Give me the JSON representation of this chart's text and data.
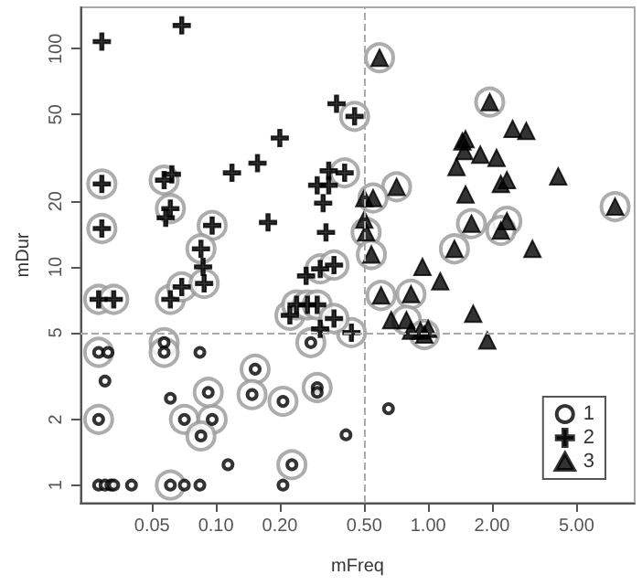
{
  "chart_data": {
    "type": "scatter",
    "xlabel": "mFreq",
    "ylabel": "mDur",
    "log": "xy",
    "grid": false,
    "legend": "bottom right",
    "xlim": [
      0.023,
      9.4
    ],
    "ylim": [
      0.83,
      155
    ],
    "xticks": [
      {
        "value": 0.05,
        "label": "0.05"
      },
      {
        "value": 0.1,
        "label": "0.10"
      },
      {
        "value": 0.2,
        "label": "0.20"
      },
      {
        "value": 0.5,
        "label": "0.50"
      },
      {
        "value": 1,
        "label": "1.00"
      },
      {
        "value": 2,
        "label": "2.00"
      },
      {
        "value": 5,
        "label": "5.00"
      }
    ],
    "yticks": [
      1,
      2,
      5,
      10,
      20,
      50,
      100
    ],
    "ref_lines": [
      {
        "axis": "x",
        "value": 0.5,
        "color": "#aaaaaa",
        "line_style": "dashed"
      },
      {
        "axis": "y",
        "value": 5,
        "color": "#aaaaaa",
        "line_style": "dashed"
      }
    ],
    "series": [
      {
        "name": "1",
        "color": "#000000",
        "marker": "circle",
        "x": [
          0.028,
          0.031,
          0.03,
          0.028,
          0.028,
          0.03,
          0.032,
          0.033,
          0.04,
          0.057,
          0.057,
          0.084,
          0.061,
          0.071,
          0.096,
          0.092,
          0.085,
          0.061,
          0.071,
          0.084,
          0.114,
          0.153,
          0.148,
          0.207,
          0.228,
          0.207,
          0.28,
          0.3,
          0.3,
          0.65,
          0.41
        ],
        "values": [
          4.06,
          4.06,
          3.0,
          2.0,
          1,
          1,
          1,
          1,
          1,
          4.5,
          4.06,
          4.06,
          2.5,
          2.0,
          2.0,
          2.66,
          1.68,
          1,
          1,
          1,
          1.24,
          3.4,
          2.6,
          2.42,
          1.24,
          1,
          4.5,
          2.8,
          2.66,
          2.24,
          1.7
        ]
      },
      {
        "name": "2",
        "color": "#000000",
        "marker": "cross",
        "x": [
          0.029,
          0.069,
          0.029,
          0.029,
          0.057,
          0.062,
          0.061,
          0.058,
          0.119,
          0.157,
          0.2,
          0.176,
          0.096,
          0.085,
          0.087,
          0.266,
          0.31,
          0.3,
          0.34,
          0.34,
          0.32,
          0.33,
          0.37,
          0.45,
          0.404,
          0.36,
          0.028,
          0.033,
          0.061,
          0.069,
          0.088,
          0.223,
          0.24,
          0.27,
          0.3,
          0.31,
          0.435,
          0.36
        ],
        "values": [
          108,
          128,
          24,
          15,
          25,
          26.6,
          18.5,
          16.8,
          27,
          29.9,
          39,
          16,
          15.5,
          12.1,
          10,
          9.1,
          9.8,
          23.7,
          23.7,
          27.6,
          19.6,
          14.4,
          56,
          49,
          27,
          10.2,
          7.1,
          7.1,
          7.1,
          8.1,
          8.4,
          6.0,
          6.7,
          6.7,
          6.7,
          5.2,
          5.0,
          5.8
        ]
      },
      {
        "name": "3",
        "color": "#000000",
        "marker": "triangle",
        "x": [
          0.59,
          1.95,
          2.5,
          2.9,
          1.45,
          1.5,
          1.48,
          1.76,
          2.1,
          1.36,
          4.1,
          2.2,
          2.35,
          1.5,
          0.71,
          0.55,
          0.5,
          7.6,
          0.5,
          0.51,
          0.54,
          1.6,
          2.35,
          2.2,
          1.33,
          3.1,
          0.94,
          1.14,
          0.6,
          0.83,
          0.67,
          0.79,
          0.83,
          0.92,
          0.96,
          1.0,
          1.63,
          1.9
        ],
        "values": [
          91,
          57,
          43,
          42,
          37.6,
          38.5,
          34,
          32.7,
          31.6,
          28.7,
          26,
          24,
          25,
          21.5,
          23.3,
          20.7,
          20.7,
          18.9,
          16.5,
          14.4,
          11.4,
          15.8,
          16.2,
          14.7,
          12.1,
          12.1,
          10,
          8.6,
          7.4,
          7.5,
          5.7,
          5.7,
          5.1,
          5.1,
          4.9,
          5.2,
          6.1,
          4.6
        ]
      },
      {
        "type": "bubble",
        "color": "#999999",
        "marker": "circle",
        "x": [
          0.029,
          0.029,
          0.057,
          0.061,
          0.096,
          0.085,
          0.31,
          0.45,
          0.404,
          0.36,
          0.028,
          0.033,
          0.061,
          0.069,
          0.088,
          0.223,
          0.24,
          0.27,
          0.3,
          0.435,
          0.36,
          0.59,
          1.95,
          0.71,
          0.55,
          7.6,
          0.51,
          0.54,
          1.6,
          2.35,
          2.2,
          1.33,
          0.6,
          0.83,
          0.79,
          0.96,
          0.028,
          0.028,
          0.057,
          0.057,
          0.071,
          0.096,
          0.092,
          0.085,
          0.061,
          0.153,
          0.148,
          0.207,
          0.228,
          0.28,
          0.3
        ],
        "values": [
          24,
          15,
          25,
          18.5,
          15.5,
          12.1,
          9.8,
          49,
          27,
          10.2,
          7.1,
          7.1,
          7.1,
          8.1,
          8.4,
          6.0,
          6.7,
          6.7,
          6.7,
          5.0,
          5.8,
          91,
          57,
          23.3,
          20.7,
          18.9,
          14.4,
          11.4,
          15.8,
          16.2,
          14.7,
          12.1,
          7.4,
          7.5,
          5.7,
          4.9,
          4.06,
          2.0,
          4.5,
          4.06,
          2.0,
          2.0,
          2.66,
          1.68,
          1,
          3.4,
          2.6,
          2.42,
          1.24,
          4.5,
          2.8
        ],
        "sizes": [
          1,
          1,
          1,
          1,
          1,
          1,
          1,
          1,
          1,
          1,
          1,
          1,
          1,
          1,
          1,
          1,
          1,
          1,
          1,
          1,
          1,
          1,
          1,
          1,
          1,
          1,
          1,
          1,
          1,
          1,
          1,
          1,
          1,
          1,
          1,
          1,
          1,
          1,
          1,
          1,
          1,
          1,
          1,
          1,
          1,
          1,
          1,
          1,
          1,
          1,
          1
        ]
      }
    ]
  }
}
